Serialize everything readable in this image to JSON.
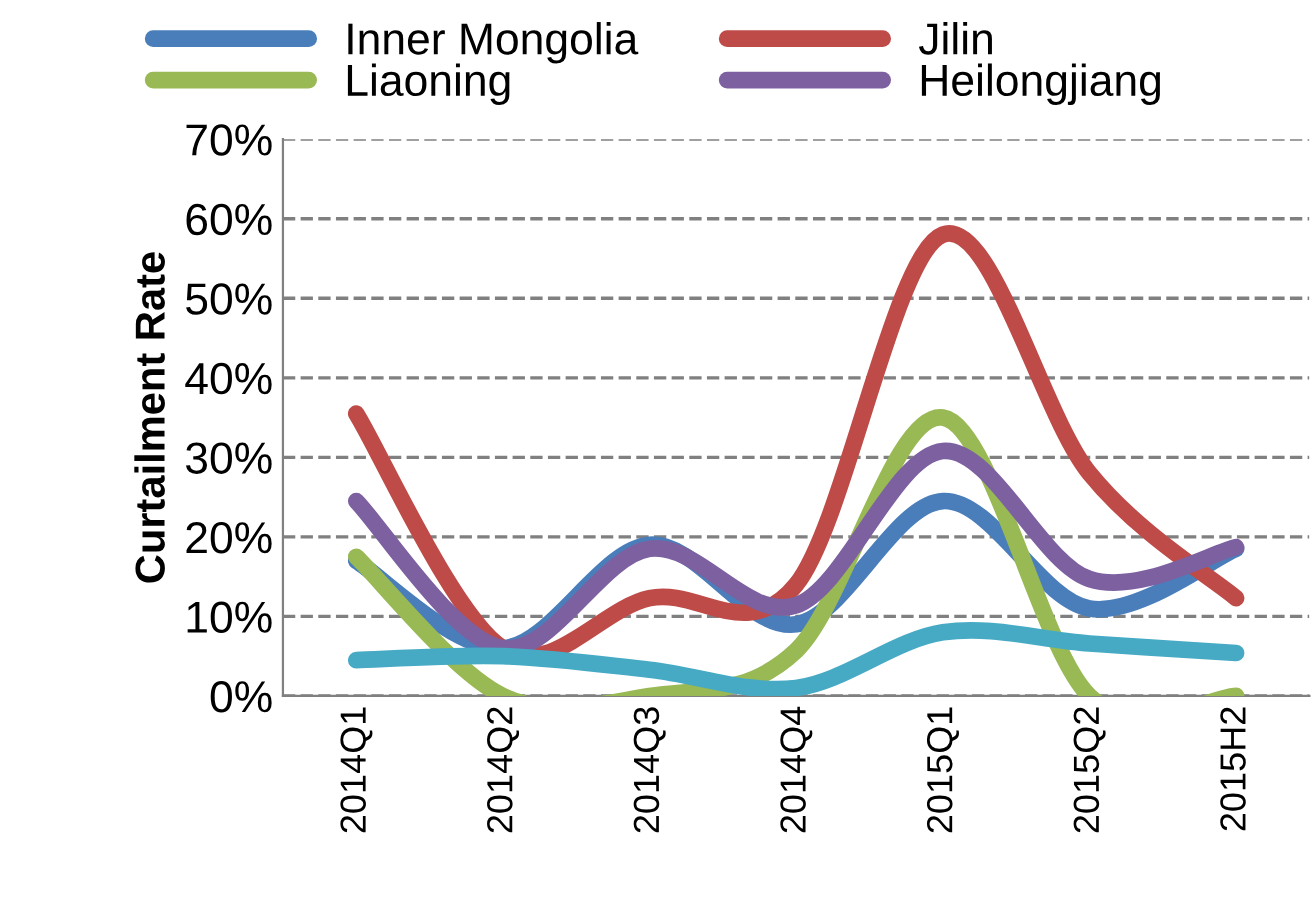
{
  "chart_data": {
    "type": "line",
    "ylabel": "Curtailment Rate",
    "categories": [
      "2014Q1",
      "2014Q2",
      "2014Q3",
      "2014Q4",
      "2015Q1",
      "2015Q2",
      "2015H2"
    ],
    "series": [
      {
        "name": "Inner Mongolia",
        "color": "#4a7ebb",
        "values": [
          17,
          6,
          19,
          9,
          24.5,
          11,
          18.5
        ]
      },
      {
        "name": "Jilin",
        "color": "#be4b48",
        "values": [
          35.5,
          6,
          12.3,
          14,
          58,
          28,
          12.3
        ]
      },
      {
        "name": "Liaoning",
        "color": "#98b954",
        "values": [
          17.5,
          0,
          0,
          5.7,
          35,
          0,
          0
        ]
      },
      {
        "name": "Heilongjiang",
        "color": "#7d60a0",
        "values": [
          24.5,
          6,
          18.5,
          11.4,
          30.8,
          14.7,
          18.7
        ]
      },
      {
        "color": "#46aac5",
        "values": [
          4.5,
          5,
          3.3,
          1,
          8,
          6.6,
          5.4
        ]
      }
    ],
    "ylim": [
      0,
      70
    ],
    "yticks": [
      {
        "value": 0,
        "label": "0%"
      },
      {
        "value": 10,
        "label": "10%"
      },
      {
        "value": 20,
        "label": "20%"
      },
      {
        "value": 30,
        "label": "30%"
      },
      {
        "value": 40,
        "label": "40%"
      },
      {
        "value": 50,
        "label": "50%"
      },
      {
        "value": 60,
        "label": "60%"
      },
      {
        "value": 70,
        "label": "70%"
      }
    ],
    "grid": "y",
    "legend": "top",
    "line_style": "solid",
    "marker": "none"
  }
}
